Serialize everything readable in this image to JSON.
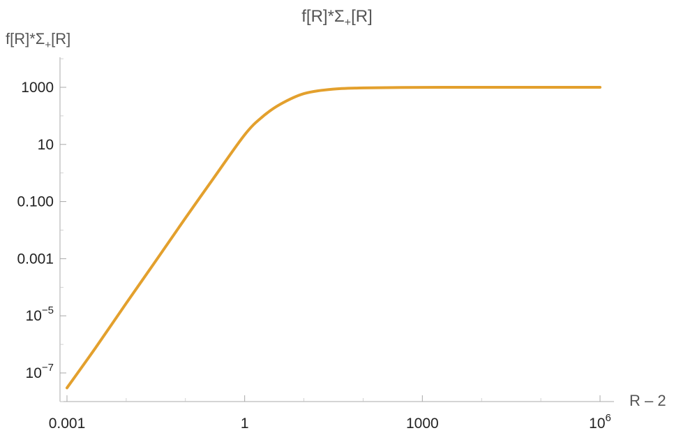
{
  "chart_data": {
    "type": "line",
    "title": "f[R]*Σ+[R]",
    "title_main": "f[R]*Σ",
    "title_sub": "+",
    "title_end": "[R]",
    "xlabel": "R – 2",
    "ylabel_main": "f[R]*Σ",
    "ylabel_sub": "+",
    "ylabel_end": "[R]",
    "xscale": "log",
    "yscale": "log",
    "xlim": [
      0.00093,
      1000000
    ],
    "ylim": [
      1e-08,
      10000
    ],
    "grid": false,
    "line_color": "#E3A02D",
    "x_ticks": [
      {
        "value": 0.001,
        "base": "0.001",
        "exp": ""
      },
      {
        "value": 1,
        "base": "1",
        "exp": ""
      },
      {
        "value": 1000,
        "base": "1000",
        "exp": ""
      },
      {
        "value": 1000000,
        "base": "10",
        "exp": "6"
      }
    ],
    "y_ticks": [
      {
        "value": 1000,
        "base": "1000",
        "exp": ""
      },
      {
        "value": 10,
        "base": "10",
        "exp": ""
      },
      {
        "value": 0.1,
        "base": "0.100",
        "exp": ""
      },
      {
        "value": 0.001,
        "base": "0.001",
        "exp": ""
      },
      {
        "value": 1e-05,
        "base": "10",
        "exp": "−5"
      },
      {
        "value": 1e-07,
        "base": "10",
        "exp": "−7"
      }
    ],
    "series": [
      {
        "x": [
          0.001,
          0.003,
          0.01,
          0.03,
          0.1,
          0.3,
          1,
          2,
          4,
          10,
          30,
          100,
          1000,
          10000,
          100000,
          1000000
        ],
        "y": [
          3e-08,
          7.3e-07,
          2.74e-05,
          0.00072,
          0.0265,
          0.665,
          21.8,
          93,
          255,
          600,
          855,
          950,
          995,
          999.5,
          1000,
          1000
        ]
      }
    ]
  }
}
